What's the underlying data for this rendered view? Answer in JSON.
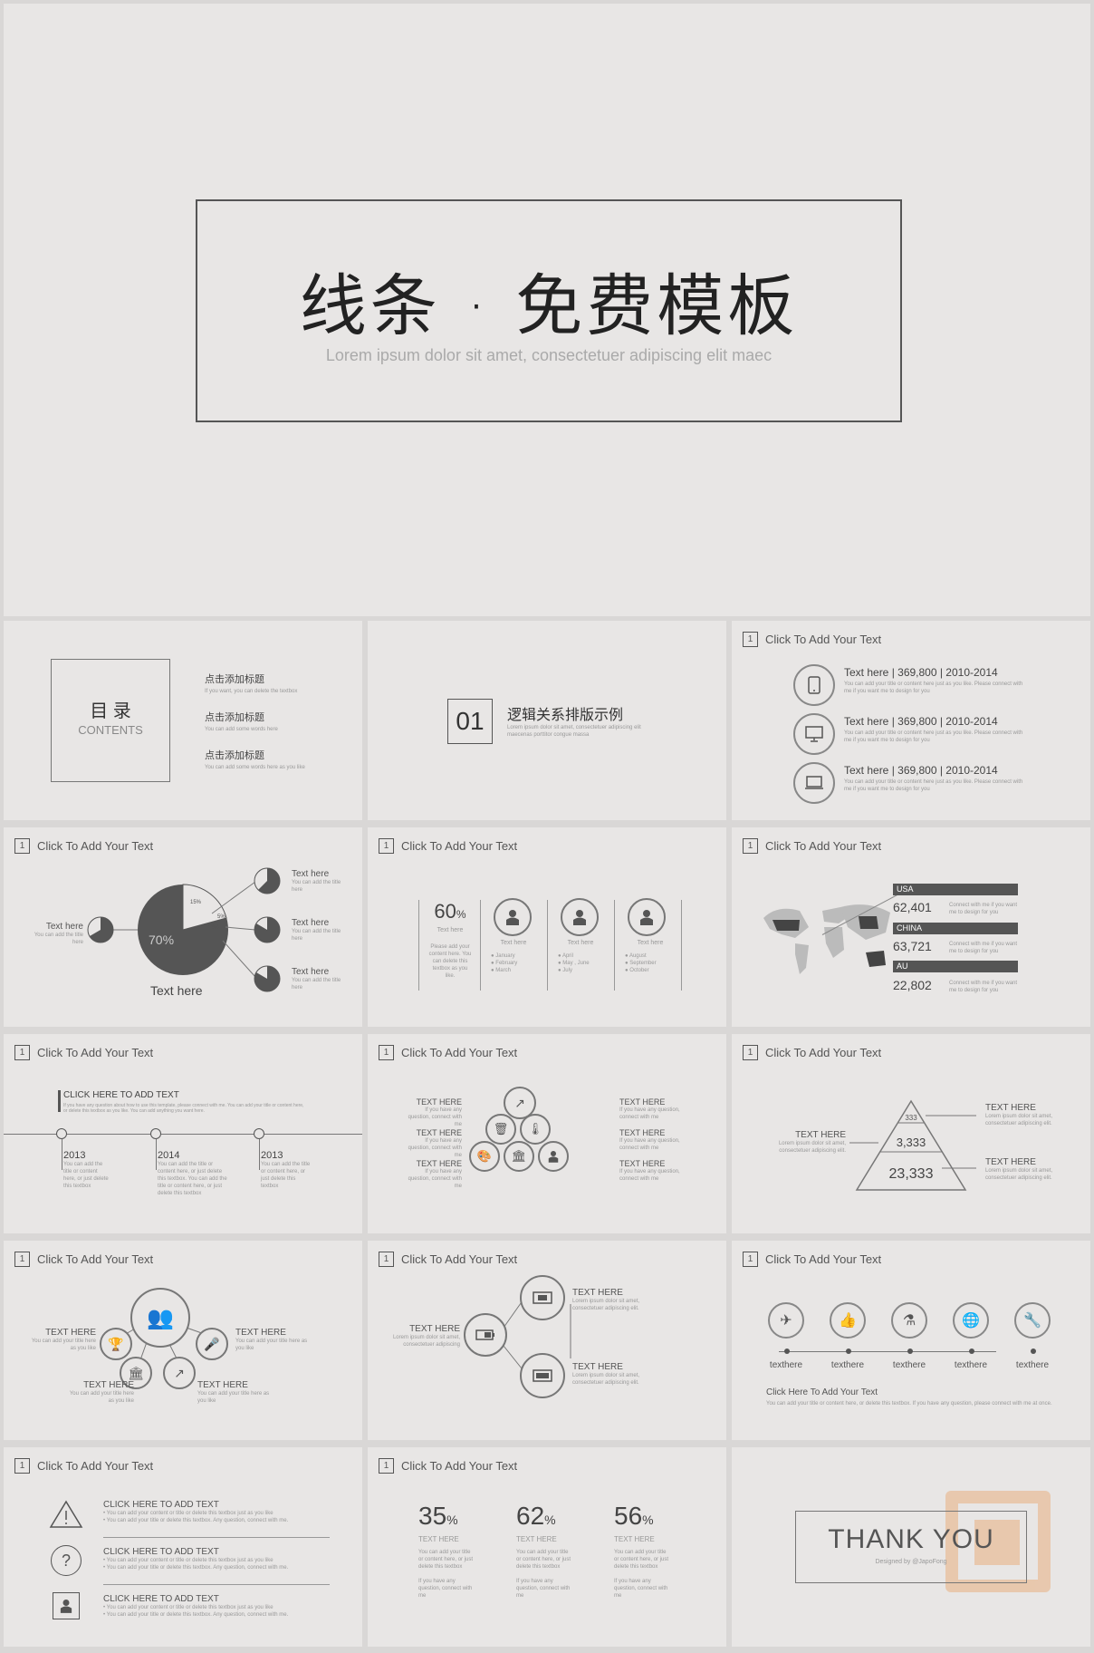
{
  "title_slide": {
    "title": "线条 · 免费模板",
    "subtitle": "Lorem ipsum dolor sit amet, consectetuer adipiscing elit maec"
  },
  "header_label": "Click To Add Your Text",
  "header_num": "1",
  "contents": {
    "title_cn": "目  录",
    "title_en": "CONTENTS",
    "items": [
      {
        "label": "点击添加标题",
        "sub": "If you want, you can delete the textbox"
      },
      {
        "label": "点击添加标题",
        "sub": "You can add some words here"
      },
      {
        "label": "点击添加标题",
        "sub": "You can add some words here as you like"
      }
    ]
  },
  "section": {
    "num": "01",
    "title": "逻辑关系排版示例",
    "sub": "Lorem ipsum dolor sit amet, consectetuer adipiscing elit maecenas porttitor congue massa"
  },
  "devices": {
    "rows": [
      {
        "icon": "phone-icon",
        "text": "Text here  |  369,800  |  2010-2014",
        "desc": "You can add your title or content here just as you like. Please connect with me if you want me to design for you"
      },
      {
        "icon": "monitor-icon",
        "text": "Text here  |  369,800  |  2010-2014",
        "desc": "You can add your title or content here just as you like. Please connect with me if you want me to design for you"
      },
      {
        "icon": "laptop-icon",
        "text": "Text here  |  369,800  |  2010-2014",
        "desc": "You can add your title or content here just as you like. Please connect with me if you want me to design for you"
      }
    ]
  },
  "pie_slide": {
    "center_label": "Text here",
    "big_pct": "70%",
    "pct_a": "15%",
    "pct_b": "5%",
    "pct_c": "10%",
    "left": {
      "title": "Text here",
      "desc": "You can add the title here"
    },
    "right": [
      {
        "title": "Text here",
        "desc": "You can add the title here"
      },
      {
        "title": "Text here",
        "desc": "You can add the title here"
      },
      {
        "title": "Text here",
        "desc": "You can add the title here"
      }
    ]
  },
  "people_slide": {
    "pct": "60",
    "pct_unit": "%",
    "label": "Text here",
    "desc": "Please add your content here. You can delete this textbox as you like.",
    "cols": [
      {
        "label": "Text here",
        "items": [
          "January",
          "February",
          "March"
        ]
      },
      {
        "label": "Text here",
        "items": [
          "April",
          "May , June",
          "July"
        ]
      },
      {
        "label": "Text here",
        "items": [
          "August",
          "September",
          "October"
        ]
      }
    ]
  },
  "map_slide": {
    "rows": [
      {
        "country": "USA",
        "value": "62,401",
        "desc": "Connect with me if you want me to design for you"
      },
      {
        "country": "CHINA",
        "value": "63,721",
        "desc": "Connect with me if you want me to design for you"
      },
      {
        "country": "AU",
        "value": "22,802",
        "desc": "Connect with me if you want me to design for you"
      }
    ]
  },
  "timeline": {
    "heading": "CLICK HERE TO ADD TEXT",
    "heading_desc": "If you have any question about how to use this template, please connect with me. You can add your title or content here, or delete this textbox as you like. You can add anything you want here.",
    "points": [
      {
        "year": "2013",
        "desc": "You can add the title or content here, or just delete this textbox"
      },
      {
        "year": "2014",
        "desc": "You can add the title or content here, or just delete this textbox. You can add the title or content here, or just delete this textbox"
      },
      {
        "year": "2013",
        "desc": "You can add the title or content here, or just delete this textbox"
      }
    ]
  },
  "icons_slide": {
    "left": [
      {
        "title": "TEXT HERE",
        "desc": "If you have any question, connect with me"
      },
      {
        "title": "TEXT HERE",
        "desc": "If you have any question, connect with me"
      },
      {
        "title": "TEXT HERE",
        "desc": "If you have any question, connect with me"
      }
    ],
    "right": [
      {
        "title": "TEXT HERE",
        "desc": "If you have any question, connect with me"
      },
      {
        "title": "TEXT HERE",
        "desc": "If you have any question, connect with me"
      },
      {
        "title": "TEXT HERE",
        "desc": "If you have any question, connect with me"
      }
    ]
  },
  "pyramid": {
    "levels": [
      "333",
      "3,333",
      "23,333"
    ],
    "left": {
      "title": "TEXT HERE",
      "desc": "Lorem ipsum dolor sit amet, consectetuer adipiscing elit."
    },
    "right": [
      {
        "title": "TEXT HERE",
        "desc": "Lorem ipsum dolor sit amet, consectetuer adipiscing elit."
      },
      {
        "title": "TEXT HERE",
        "desc": "Lorem ipsum dolor sit amet, consectetuer adipiscing elit."
      }
    ]
  },
  "hub_slide": {
    "labels": [
      {
        "title": "TEXT HERE",
        "desc": "You can add your title here as you like"
      },
      {
        "title": "TEXT HERE",
        "desc": "You can add your title here as you like"
      },
      {
        "title": "TEXT HERE",
        "desc": "You can add your title here as you like"
      },
      {
        "title": "TEXT HERE",
        "desc": "You can add your title here as you like"
      }
    ]
  },
  "tree_slide": {
    "left": {
      "title": "TEXT HERE",
      "desc": "Lorem ipsum dolor sit amet, consectetuer adipiscing"
    },
    "right": [
      {
        "title": "TEXT HERE",
        "desc": "Lorem ipsum dolor sit amet, consectetuer adipiscing elit."
      },
      {
        "title": "TEXT HERE",
        "desc": "Lorem ipsum dolor sit amet, consectetuer adipiscing elit."
      }
    ]
  },
  "process_slide": {
    "steps": [
      "texthere",
      "texthere",
      "texthere",
      "texthere",
      "texthere"
    ],
    "title": "Click Here To Add Your Text",
    "desc": "You can add your title or content here, or delete this textbox. If you have any question, please connect with me at once."
  },
  "list_slide": {
    "items": [
      {
        "title": "CLICK HERE TO ADD TEXT",
        "line1": "You can add your content or title or delete this textbox just as you like",
        "line2": "You can add your title or delete this textbox. Any question, connect with me."
      },
      {
        "title": "CLICK HERE TO ADD TEXT",
        "line1": "You can add your content or title or delete this textbox just as you like",
        "line2": "You can add your title or delete this textbox. Any question, connect with me."
      },
      {
        "title": "CLICK HERE TO ADD TEXT",
        "line1": "You can add your content or title or delete this textbox just as you like",
        "line2": "You can add your title or delete this textbox. Any question, connect with me."
      }
    ]
  },
  "percent_slide": {
    "cols": [
      {
        "pct": "35",
        "unit": "%",
        "title": "TEXT HERE",
        "desc": "You can add your title or content here, or just delete this textbox",
        "desc2": "If you have any question, connect with me"
      },
      {
        "pct": "62",
        "unit": "%",
        "title": "TEXT HERE",
        "desc": "You can add your title or content here, or just delete this textbox",
        "desc2": "If you have any question, connect with me"
      },
      {
        "pct": "56",
        "unit": "%",
        "title": "TEXT HERE",
        "desc": "You can add your title or content here, or just delete this textbox",
        "desc2": "If you have any question, connect with me"
      }
    ]
  },
  "thanks": {
    "title": "THANK YOU",
    "sub": "Designed by @JapoFong"
  },
  "colors": {
    "accent": "#555555",
    "background": "#e8e6e5",
    "watermark": "#e9a56b"
  }
}
